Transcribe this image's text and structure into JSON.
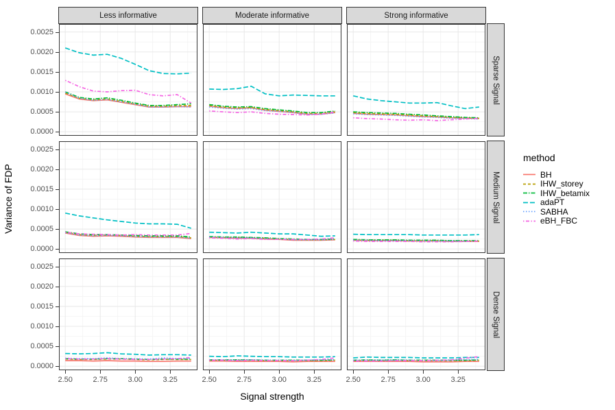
{
  "chart_data": {
    "type": "line",
    "title": "",
    "xlabel": "Signal strength",
    "ylabel": "Variance of FDP",
    "legend_title": "method",
    "legend_position": "right",
    "grid": true,
    "col_facets": [
      "Less informative",
      "Moderate informative",
      "Strong informative"
    ],
    "row_facets": [
      "Sparse Signal",
      "Medium Signal",
      "Dense Signal"
    ],
    "x": [
      2.5,
      2.6,
      2.7,
      2.8,
      2.9,
      3.0,
      3.1,
      3.2,
      3.3,
      3.4
    ],
    "xticks": [
      2.5,
      2.75,
      3.0,
      3.25
    ],
    "xtick_labels": [
      "2.50",
      "2.75",
      "3.00",
      "3.25"
    ],
    "xlim": [
      2.455,
      3.445
    ],
    "yticks": [
      0.0,
      0.0005,
      0.001,
      0.0015,
      0.002,
      0.0025
    ],
    "ytick_labels": [
      "0.0000",
      "0.0005",
      "0.0010",
      "0.0015",
      "0.0020",
      "0.0025"
    ],
    "ylim": [
      -0.0001,
      0.0027
    ],
    "methods": [
      {
        "name": "BH",
        "color": "#F8766D",
        "dash": "",
        "linetype": "solid"
      },
      {
        "name": "IHW_storey",
        "color": "#B79F00",
        "dash": "4 3",
        "linetype": "dashed"
      },
      {
        "name": "IHW_betamix",
        "color": "#00BA38",
        "dash": "6 2 1.5 2",
        "linetype": "dashdot"
      },
      {
        "name": "adaPT",
        "color": "#00BFC4",
        "dash": "7 3",
        "linetype": "longdash"
      },
      {
        "name": "SABHA",
        "color": "#619CFF",
        "dash": "1.5 2.5",
        "linetype": "dotted"
      },
      {
        "name": "eBH_FBC",
        "color": "#F564E3",
        "dash": "1.5 2.5 5 2.5",
        "linetype": "dotdash"
      }
    ],
    "panels": [
      {
        "row": "Sparse Signal",
        "col": "Less informative",
        "series": [
          [
            0.00095,
            0.00082,
            0.00078,
            0.0008,
            0.00074,
            0.00068,
            0.00062,
            0.00062,
            0.00063,
            0.00063
          ],
          [
            0.00097,
            0.00084,
            0.0008,
            0.00082,
            0.00076,
            0.0007,
            0.00064,
            0.00064,
            0.00065,
            0.00066
          ],
          [
            0.001,
            0.00086,
            0.00082,
            0.00085,
            0.00079,
            0.00072,
            0.00066,
            0.00066,
            0.00068,
            0.0007
          ],
          [
            0.0021,
            0.00198,
            0.00192,
            0.00194,
            0.00184,
            0.00169,
            0.00153,
            0.00146,
            0.00145,
            0.00147
          ],
          [
            0.00099,
            0.00084,
            0.00079,
            0.00081,
            0.00075,
            0.00069,
            0.00062,
            0.00062,
            0.00063,
            0.00062
          ],
          [
            0.00129,
            0.00113,
            0.00102,
            0.001,
            0.00103,
            0.00104,
            0.00093,
            0.0009,
            0.00093,
            0.00072
          ]
        ]
      },
      {
        "row": "Sparse Signal",
        "col": "Moderate informative",
        "series": [
          [
            0.00064,
            0.0006,
            0.00058,
            0.0006,
            0.00054,
            0.00051,
            0.00048,
            0.00044,
            0.00044,
            0.00048
          ],
          [
            0.00066,
            0.00062,
            0.0006,
            0.00061,
            0.00056,
            0.00053,
            0.0005,
            0.00046,
            0.00046,
            0.0005
          ],
          [
            0.00068,
            0.00064,
            0.00062,
            0.00063,
            0.00058,
            0.00055,
            0.00052,
            0.00048,
            0.00048,
            0.00052
          ],
          [
            0.00107,
            0.00106,
            0.00108,
            0.00114,
            0.00095,
            0.0009,
            0.00092,
            0.00091,
            0.0009,
            0.0009
          ],
          [
            0.00062,
            0.00059,
            0.00057,
            0.00058,
            0.00053,
            0.00051,
            0.00048,
            0.00044,
            0.00044,
            0.00047
          ],
          [
            0.00052,
            0.0005,
            0.00048,
            0.0005,
            0.00046,
            0.00044,
            0.00043,
            0.00042,
            0.00044,
            0.0005
          ]
        ]
      },
      {
        "row": "Sparse Signal",
        "col": "Strong informative",
        "series": [
          [
            0.00046,
            0.00044,
            0.00043,
            0.00042,
            0.0004,
            0.00038,
            0.00037,
            0.00035,
            0.00034,
            0.00033
          ],
          [
            0.00048,
            0.00046,
            0.00045,
            0.00044,
            0.00042,
            0.0004,
            0.00038,
            0.00036,
            0.00035,
            0.00034
          ],
          [
            0.0005,
            0.00048,
            0.00047,
            0.00046,
            0.00044,
            0.00042,
            0.0004,
            0.00038,
            0.00036,
            0.00035
          ],
          [
            0.0009,
            0.00082,
            0.00078,
            0.00075,
            0.00072,
            0.00072,
            0.00073,
            0.00065,
            0.00058,
            0.00062
          ],
          [
            0.00045,
            0.00043,
            0.00042,
            0.00041,
            0.00039,
            0.00037,
            0.00036,
            0.00034,
            0.00033,
            0.00032
          ],
          [
            0.00035,
            0.00033,
            0.00032,
            0.0003,
            0.00029,
            0.0003,
            0.00028,
            0.0003,
            0.00032,
            0.00034
          ]
        ]
      },
      {
        "row": "Medium Signal",
        "col": "Less informative",
        "series": [
          [
            0.0004,
            0.00034,
            0.00032,
            0.00033,
            0.00032,
            0.0003,
            0.00029,
            0.00029,
            0.00029,
            0.00026
          ],
          [
            0.00042,
            0.00036,
            0.00034,
            0.00035,
            0.00034,
            0.00032,
            0.00031,
            0.00031,
            0.00031,
            0.00028
          ],
          [
            0.00043,
            0.00038,
            0.00036,
            0.00036,
            0.00035,
            0.00034,
            0.00033,
            0.00033,
            0.00033,
            0.0003
          ],
          [
            0.0009,
            0.00083,
            0.00078,
            0.00073,
            0.00069,
            0.00065,
            0.00063,
            0.00063,
            0.00062,
            0.00052
          ],
          [
            0.00041,
            0.00035,
            0.00033,
            0.00034,
            0.00033,
            0.00031,
            0.0003,
            0.0003,
            0.0003,
            0.00027
          ],
          [
            0.00042,
            0.00038,
            0.00037,
            0.00036,
            0.00035,
            0.00036,
            0.00035,
            0.00035,
            0.00035,
            0.00039
          ]
        ]
      },
      {
        "row": "Medium Signal",
        "col": "Moderate informative",
        "series": [
          [
            0.00029,
            0.00028,
            0.00027,
            0.00027,
            0.00025,
            0.00024,
            0.00022,
            0.00022,
            0.00022,
            0.00023
          ],
          [
            0.0003,
            0.00029,
            0.00029,
            0.00028,
            0.00027,
            0.00025,
            0.00024,
            0.00023,
            0.00023,
            0.00024
          ],
          [
            0.00031,
            0.0003,
            0.0003,
            0.00029,
            0.00028,
            0.00026,
            0.00025,
            0.00024,
            0.00024,
            0.00025
          ],
          [
            0.00042,
            0.00041,
            0.0004,
            0.00042,
            0.0004,
            0.00038,
            0.00038,
            0.00035,
            0.00032,
            0.00033
          ],
          [
            0.0003,
            0.00029,
            0.00028,
            0.00028,
            0.00026,
            0.00025,
            0.00023,
            0.00023,
            0.00023,
            0.00024
          ],
          [
            0.00028,
            0.00027,
            0.00025,
            0.00026,
            0.00024,
            0.00024,
            0.00024,
            0.00024,
            0.00025,
            0.00028
          ]
        ]
      },
      {
        "row": "Medium Signal",
        "col": "Strong informative",
        "series": [
          [
            0.00022,
            0.00021,
            0.00021,
            0.00021,
            0.0002,
            0.0002,
            0.0002,
            0.00019,
            0.00019,
            0.00019
          ],
          [
            0.00023,
            0.00022,
            0.00022,
            0.00022,
            0.00021,
            0.00021,
            0.00021,
            0.0002,
            0.0002,
            0.0002
          ],
          [
            0.00024,
            0.00023,
            0.00023,
            0.00023,
            0.00022,
            0.00022,
            0.00022,
            0.00021,
            0.00021,
            0.00021
          ],
          [
            0.00037,
            0.00036,
            0.00036,
            0.00036,
            0.00036,
            0.00035,
            0.00035,
            0.00035,
            0.00035,
            0.00036
          ],
          [
            0.00022,
            0.00022,
            0.00021,
            0.00021,
            0.00021,
            0.0002,
            0.0002,
            0.0002,
            0.00019,
            0.0002
          ],
          [
            0.0002,
            0.00019,
            0.00019,
            0.00019,
            0.00019,
            0.00018,
            0.00018,
            0.00018,
            0.00019,
            0.0002
          ]
        ]
      },
      {
        "row": "Dense Signal",
        "col": "Less informative",
        "series": [
          [
            0.00014,
            0.00014,
            0.00013,
            0.00014,
            0.00013,
            0.00013,
            0.00012,
            0.00012,
            0.00013,
            0.00013
          ],
          [
            0.00018,
            0.00017,
            0.00017,
            0.00018,
            0.00018,
            0.00017,
            0.00016,
            0.00017,
            0.00017,
            0.00017
          ],
          [
            0.00019,
            0.00018,
            0.00018,
            0.00019,
            0.00019,
            0.00018,
            0.00017,
            0.00018,
            0.00018,
            0.00018
          ],
          [
            0.00032,
            0.00031,
            0.00032,
            0.00034,
            0.00031,
            0.0003,
            0.00028,
            0.00029,
            0.00029,
            0.00028
          ],
          [
            0.0002,
            0.00019,
            0.00019,
            0.00021,
            0.00019,
            0.00019,
            0.00018,
            0.00021,
            0.00019,
            0.00019
          ],
          [
            0.00019,
            0.00018,
            0.00018,
            0.00019,
            0.00018,
            0.00017,
            0.00017,
            0.00018,
            0.00019,
            0.00022
          ]
        ]
      },
      {
        "row": "Dense Signal",
        "col": "Moderate informative",
        "series": [
          [
            0.00013,
            0.00013,
            0.00012,
            0.00012,
            0.00012,
            0.00012,
            0.00011,
            0.00012,
            0.00012,
            0.00012
          ],
          [
            0.00015,
            0.00015,
            0.00015,
            0.00015,
            0.00014,
            0.00014,
            0.00014,
            0.00014,
            0.00014,
            0.00015
          ],
          [
            0.00016,
            0.00016,
            0.00016,
            0.00016,
            0.00015,
            0.00015,
            0.00015,
            0.00015,
            0.00015,
            0.00016
          ],
          [
            0.00025,
            0.00024,
            0.00026,
            0.00025,
            0.00024,
            0.00024,
            0.00023,
            0.00023,
            0.00023,
            0.00024
          ],
          [
            0.00016,
            0.00016,
            0.00015,
            0.00016,
            0.00015,
            0.00015,
            0.00014,
            0.00015,
            0.00016,
            0.00016
          ],
          [
            0.00015,
            0.00015,
            0.00014,
            0.00015,
            0.00014,
            0.00014,
            0.00014,
            0.00015,
            0.00017,
            0.00021
          ]
        ]
      },
      {
        "row": "Dense Signal",
        "col": "Strong informative",
        "series": [
          [
            0.00012,
            0.00012,
            0.00012,
            0.00012,
            0.00012,
            0.00011,
            0.00011,
            0.00011,
            0.00012,
            0.00012
          ],
          [
            0.00014,
            0.00015,
            0.00014,
            0.00015,
            0.00014,
            0.00014,
            0.00014,
            0.00014,
            0.00014,
            0.00015
          ],
          [
            0.00015,
            0.00016,
            0.00015,
            0.00016,
            0.00015,
            0.00015,
            0.00015,
            0.00015,
            0.00015,
            0.00016
          ],
          [
            0.00021,
            0.00023,
            0.00022,
            0.00022,
            0.00022,
            0.00021,
            0.00021,
            0.00021,
            0.00022,
            0.00022
          ],
          [
            0.00015,
            0.00015,
            0.00015,
            0.00015,
            0.00015,
            0.00014,
            0.00014,
            0.00015,
            0.00016,
            0.00017
          ],
          [
            0.00013,
            0.00013,
            0.00013,
            0.00014,
            0.00014,
            0.00014,
            0.00015,
            0.00016,
            0.0002,
            0.00024
          ]
        ]
      }
    ],
    "colors": {
      "strip_background": "#d9d9d9",
      "panel_border": "#333333",
      "grid_major": "#e8e8e8",
      "grid_minor": "#f3f3f3",
      "tick_label": "#4d4d4d"
    }
  }
}
